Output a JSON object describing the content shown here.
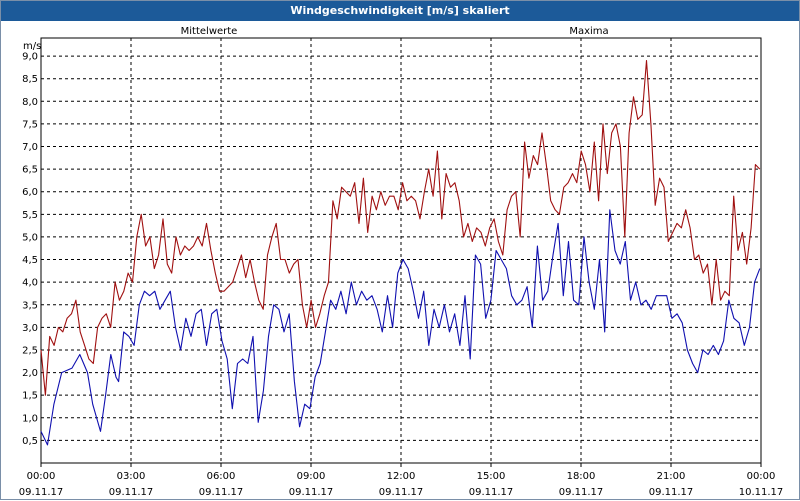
{
  "window": {
    "title": "Windgeschwindigkeit [m/s] skaliert"
  },
  "colors": {
    "titlebar": "#1c5a99",
    "mittel": "#1010b0",
    "maxima": "#a01010",
    "grid": "#000000"
  },
  "chart_data": {
    "type": "line",
    "title": "Windgeschwindigkeit [m/s] skaliert",
    "ylabel": "m/s",
    "xlabel": "",
    "ylim": [
      0,
      9.4
    ],
    "y_ticks": [
      "0,5",
      "1,0",
      "1,5",
      "2,0",
      "2,5",
      "3,0",
      "3,5",
      "4,0",
      "4,5",
      "5,0",
      "5,5",
      "6,0",
      "6,5",
      "7,0",
      "7,5",
      "8,0",
      "8,5",
      "9,0"
    ],
    "x_ticks": [
      {
        "time": "00:00",
        "date": "09.11.17"
      },
      {
        "time": "03:00",
        "date": "09.11.17"
      },
      {
        "time": "06:00",
        "date": "09.11.17"
      },
      {
        "time": "09:00",
        "date": "09.11.17"
      },
      {
        "time": "12:00",
        "date": "09.11.17"
      },
      {
        "time": "15:00",
        "date": "09.11.17"
      },
      {
        "time": "18:00",
        "date": "09.11.17"
      },
      {
        "time": "21:00",
        "date": "09.11.17"
      },
      {
        "time": "00:00",
        "date": "10.11.17"
      }
    ],
    "x_unit": "hours",
    "grid": true,
    "series": [
      {
        "name": "Mittelwerte",
        "color": "#1010b0",
        "points": [
          [
            0,
            0.7
          ],
          [
            0.25,
            0.4
          ],
          [
            0.5,
            1.3
          ],
          [
            0.8,
            2.0
          ],
          [
            1.2,
            2.1
          ],
          [
            1.5,
            2.4
          ],
          [
            1.8,
            2.0
          ],
          [
            2.0,
            1.3
          ],
          [
            2.3,
            0.7
          ],
          [
            2.5,
            1.5
          ],
          [
            2.7,
            2.4
          ],
          [
            2.9,
            1.9
          ],
          [
            3.0,
            1.8
          ],
          [
            3.2,
            2.9
          ],
          [
            3.4,
            2.8
          ],
          [
            3.6,
            2.6
          ],
          [
            3.8,
            3.5
          ],
          [
            4.0,
            3.8
          ],
          [
            4.2,
            3.7
          ],
          [
            4.4,
            3.8
          ],
          [
            4.6,
            3.4
          ],
          [
            4.8,
            3.6
          ],
          [
            5.0,
            3.8
          ],
          [
            5.2,
            3.0
          ],
          [
            5.4,
            2.5
          ],
          [
            5.6,
            3.2
          ],
          [
            5.8,
            2.8
          ],
          [
            6.0,
            3.3
          ],
          [
            6.2,
            3.4
          ],
          [
            6.4,
            2.6
          ],
          [
            6.6,
            3.3
          ],
          [
            6.8,
            3.4
          ],
          [
            7.0,
            2.7
          ],
          [
            7.2,
            2.3
          ],
          [
            7.4,
            1.2
          ],
          [
            7.6,
            2.2
          ],
          [
            7.8,
            2.3
          ],
          [
            8.0,
            2.2
          ],
          [
            8.2,
            2.8
          ],
          [
            8.4,
            0.9
          ],
          [
            8.6,
            1.6
          ],
          [
            8.8,
            2.8
          ],
          [
            9.0,
            3.5
          ],
          [
            9.2,
            3.4
          ],
          [
            9.4,
            2.9
          ],
          [
            9.6,
            3.3
          ],
          [
            9.8,
            1.8
          ],
          [
            10.0,
            0.8
          ],
          [
            10.2,
            1.3
          ],
          [
            10.4,
            1.2
          ],
          [
            10.6,
            1.9
          ],
          [
            10.8,
            2.2
          ],
          [
            11.0,
            2.9
          ],
          [
            11.2,
            3.6
          ],
          [
            11.4,
            3.4
          ],
          [
            11.6,
            3.8
          ],
          [
            11.8,
            3.3
          ],
          [
            12.0,
            4.0
          ],
          [
            12.2,
            3.5
          ],
          [
            12.4,
            3.8
          ],
          [
            12.6,
            3.6
          ],
          [
            12.8,
            3.7
          ],
          [
            13.0,
            3.4
          ],
          [
            13.2,
            2.9
          ],
          [
            13.4,
            3.7
          ],
          [
            13.6,
            3.0
          ],
          [
            13.8,
            4.2
          ],
          [
            14.0,
            4.5
          ],
          [
            14.2,
            4.3
          ],
          [
            14.4,
            3.8
          ],
          [
            14.6,
            3.2
          ],
          [
            14.8,
            3.8
          ],
          [
            15.0,
            2.6
          ],
          [
            15.2,
            3.4
          ],
          [
            15.4,
            3.0
          ],
          [
            15.6,
            3.5
          ],
          [
            15.8,
            2.9
          ],
          [
            16.0,
            3.3
          ],
          [
            16.2,
            2.6
          ],
          [
            16.4,
            3.7
          ],
          [
            16.6,
            2.3
          ],
          [
            16.8,
            4.6
          ],
          [
            17.0,
            4.4
          ],
          [
            17.2,
            3.2
          ],
          [
            17.4,
            3.6
          ],
          [
            17.6,
            4.7
          ],
          [
            17.8,
            4.5
          ],
          [
            18.0,
            4.3
          ],
          [
            18.2,
            3.7
          ],
          [
            18.4,
            3.5
          ],
          [
            18.6,
            3.6
          ],
          [
            18.8,
            3.9
          ],
          [
            19.0,
            3.0
          ],
          [
            19.2,
            4.8
          ],
          [
            19.4,
            3.6
          ],
          [
            19.6,
            3.8
          ],
          [
            19.8,
            4.6
          ],
          [
            20.0,
            5.3
          ],
          [
            20.2,
            3.7
          ],
          [
            20.4,
            4.9
          ],
          [
            20.6,
            3.6
          ],
          [
            20.8,
            3.5
          ],
          [
            21.0,
            5.0
          ],
          [
            21.2,
            4.0
          ],
          [
            21.4,
            3.4
          ],
          [
            21.6,
            4.5
          ],
          [
            21.8,
            2.9
          ],
          [
            22.0,
            5.6
          ],
          [
            22.2,
            4.7
          ],
          [
            22.4,
            4.4
          ],
          [
            22.6,
            4.9
          ],
          [
            22.8,
            3.6
          ],
          [
            23.0,
            4.0
          ],
          [
            23.2,
            3.5
          ],
          [
            23.4,
            3.6
          ],
          [
            23.6,
            3.4
          ],
          [
            23.8,
            3.7
          ],
          [
            24.0,
            3.7
          ],
          [
            24.2,
            3.7
          ],
          [
            24.4,
            3.2
          ],
          [
            24.6,
            3.3
          ],
          [
            24.8,
            3.1
          ],
          [
            25.0,
            2.5
          ],
          [
            25.2,
            2.2
          ],
          [
            25.4,
            2.0
          ],
          [
            25.6,
            2.5
          ],
          [
            25.8,
            2.4
          ],
          [
            26.0,
            2.6
          ],
          [
            26.2,
            2.4
          ],
          [
            26.4,
            2.7
          ],
          [
            26.6,
            3.6
          ],
          [
            26.8,
            3.2
          ],
          [
            27.0,
            3.1
          ],
          [
            27.2,
            2.6
          ],
          [
            27.4,
            3.0
          ],
          [
            27.6,
            4.0
          ],
          [
            27.8,
            4.3
          ]
        ]
      },
      {
        "name": "Maxima",
        "color": "#a01010",
        "points": [
          [
            0,
            2.5
          ],
          [
            0.2,
            1.5
          ],
          [
            0.4,
            2.8
          ],
          [
            0.6,
            2.6
          ],
          [
            0.8,
            3.0
          ],
          [
            1.0,
            2.9
          ],
          [
            1.2,
            3.2
          ],
          [
            1.4,
            3.3
          ],
          [
            1.6,
            3.6
          ],
          [
            1.8,
            2.9
          ],
          [
            2.0,
            2.6
          ],
          [
            2.2,
            2.3
          ],
          [
            2.4,
            2.2
          ],
          [
            2.6,
            3.0
          ],
          [
            2.8,
            3.2
          ],
          [
            3.0,
            3.3
          ],
          [
            3.2,
            3.0
          ],
          [
            3.4,
            4.0
          ],
          [
            3.6,
            3.6
          ],
          [
            3.8,
            3.8
          ],
          [
            4.0,
            4.2
          ],
          [
            4.2,
            4.0
          ],
          [
            4.4,
            5.0
          ],
          [
            4.6,
            5.5
          ],
          [
            4.8,
            4.8
          ],
          [
            5.0,
            5.0
          ],
          [
            5.2,
            4.3
          ],
          [
            5.4,
            4.6
          ],
          [
            5.6,
            5.4
          ],
          [
            5.8,
            4.4
          ],
          [
            6.0,
            4.2
          ],
          [
            6.2,
            5.0
          ],
          [
            6.4,
            4.6
          ],
          [
            6.6,
            4.8
          ],
          [
            6.8,
            4.7
          ],
          [
            7.0,
            4.8
          ],
          [
            7.2,
            5.0
          ],
          [
            7.4,
            4.8
          ],
          [
            7.6,
            5.3
          ],
          [
            7.8,
            4.7
          ],
          [
            8.0,
            4.2
          ],
          [
            8.2,
            3.8
          ],
          [
            8.4,
            3.8
          ],
          [
            8.6,
            3.9
          ],
          [
            8.8,
            4.0
          ],
          [
            9.0,
            4.3
          ],
          [
            9.2,
            4.6
          ],
          [
            9.4,
            4.1
          ],
          [
            9.6,
            4.5
          ],
          [
            9.8,
            4.0
          ],
          [
            10.0,
            3.6
          ],
          [
            10.2,
            3.4
          ],
          [
            10.4,
            4.6
          ],
          [
            10.6,
            5.0
          ],
          [
            10.8,
            5.3
          ],
          [
            11.0,
            4.5
          ],
          [
            11.2,
            4.5
          ],
          [
            11.4,
            4.2
          ],
          [
            11.6,
            4.4
          ],
          [
            11.8,
            4.5
          ],
          [
            12.0,
            3.5
          ],
          [
            12.2,
            3.0
          ],
          [
            12.4,
            3.6
          ],
          [
            12.6,
            3.0
          ],
          [
            12.8,
            3.3
          ],
          [
            13.0,
            3.7
          ],
          [
            13.2,
            4.0
          ],
          [
            13.4,
            5.8
          ],
          [
            13.6,
            5.4
          ],
          [
            13.8,
            6.1
          ],
          [
            14.0,
            6.0
          ],
          [
            14.2,
            5.9
          ],
          [
            14.4,
            6.2
          ],
          [
            14.6,
            5.3
          ],
          [
            14.8,
            6.3
          ],
          [
            15.0,
            5.1
          ],
          [
            15.2,
            5.9
          ],
          [
            15.4,
            5.6
          ],
          [
            15.6,
            6.0
          ],
          [
            15.8,
            5.7
          ],
          [
            16.0,
            5.9
          ],
          [
            16.2,
            5.9
          ],
          [
            16.4,
            5.6
          ],
          [
            16.6,
            6.2
          ],
          [
            16.8,
            5.8
          ],
          [
            17.0,
            5.9
          ],
          [
            17.2,
            5.8
          ],
          [
            17.4,
            5.4
          ],
          [
            17.6,
            6.0
          ],
          [
            17.8,
            6.5
          ],
          [
            18.0,
            5.9
          ],
          [
            18.2,
            6.9
          ],
          [
            18.4,
            5.4
          ],
          [
            18.6,
            6.4
          ],
          [
            18.8,
            6.1
          ],
          [
            19.0,
            6.2
          ],
          [
            19.2,
            5.8
          ],
          [
            19.4,
            5.0
          ],
          [
            19.6,
            5.3
          ],
          [
            19.8,
            4.9
          ],
          [
            20.0,
            5.2
          ],
          [
            20.2,
            5.1
          ],
          [
            20.4,
            4.8
          ],
          [
            20.6,
            5.2
          ],
          [
            20.8,
            5.4
          ],
          [
            21.0,
            4.9
          ],
          [
            21.2,
            4.6
          ],
          [
            21.4,
            5.6
          ],
          [
            21.6,
            5.9
          ],
          [
            21.8,
            6.0
          ],
          [
            22.0,
            5.0
          ],
          [
            22.2,
            7.1
          ],
          [
            22.4,
            6.3
          ],
          [
            22.6,
            6.8
          ],
          [
            22.8,
            6.6
          ],
          [
            23.0,
            7.3
          ],
          [
            23.2,
            6.6
          ],
          [
            23.4,
            5.8
          ],
          [
            23.6,
            5.6
          ],
          [
            23.8,
            5.5
          ],
          [
            24.0,
            6.1
          ],
          [
            24.2,
            6.2
          ],
          [
            24.4,
            6.4
          ],
          [
            24.6,
            6.2
          ],
          [
            24.8,
            6.9
          ],
          [
            25.0,
            6.6
          ],
          [
            25.2,
            6.0
          ],
          [
            25.4,
            7.1
          ],
          [
            25.6,
            5.8
          ],
          [
            25.8,
            7.5
          ],
          [
            26.0,
            6.4
          ],
          [
            26.2,
            7.3
          ],
          [
            26.4,
            7.5
          ],
          [
            26.6,
            7.0
          ],
          [
            26.8,
            5.0
          ],
          [
            27.0,
            7.3
          ],
          [
            27.2,
            8.1
          ],
          [
            27.4,
            7.6
          ],
          [
            27.6,
            7.7
          ],
          [
            27.8,
            8.9
          ],
          [
            28.0,
            7.5
          ],
          [
            28.2,
            5.7
          ],
          [
            28.4,
            6.3
          ],
          [
            28.6,
            6.1
          ],
          [
            28.8,
            4.9
          ],
          [
            29.0,
            5.1
          ],
          [
            29.2,
            5.3
          ],
          [
            29.4,
            5.2
          ],
          [
            29.6,
            5.6
          ],
          [
            29.8,
            5.2
          ],
          [
            30.0,
            4.5
          ],
          [
            30.2,
            4.6
          ],
          [
            30.4,
            4.2
          ],
          [
            30.6,
            4.4
          ],
          [
            30.8,
            3.5
          ],
          [
            31.0,
            4.5
          ],
          [
            31.2,
            3.6
          ],
          [
            31.4,
            3.8
          ],
          [
            31.6,
            3.7
          ],
          [
            31.8,
            5.9
          ],
          [
            32.0,
            4.7
          ],
          [
            32.2,
            5.1
          ],
          [
            32.4,
            4.4
          ],
          [
            32.6,
            5.2
          ],
          [
            32.8,
            6.6
          ],
          [
            33.0,
            6.5
          ]
        ]
      }
    ]
  }
}
